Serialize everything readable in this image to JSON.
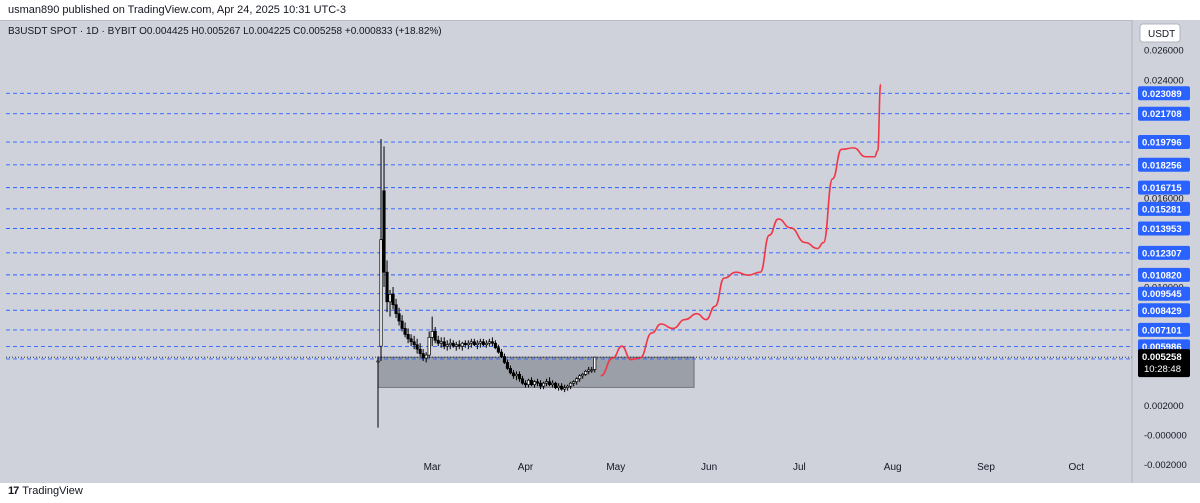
{
  "header": {
    "published": "usman890 published on TradingView.com, Apr 24, 2025 10:31 UTC-3"
  },
  "legend": {
    "text": "B3USDT SPOT · 1D · BYBIT  O0.004425  H0.005267  L0.004225  C0.005258  +0.000833 (+18.82%)"
  },
  "footer": {
    "brand": "TradingView",
    "logo_icon": "tradingview-logo-icon"
  },
  "colors": {
    "background": "#cfd1db",
    "level_line": "#2962ff",
    "projection": "#f23645",
    "candle": "#000000",
    "zone_fill": "#8a8d96",
    "label_bg": "#2962ff"
  },
  "chart_data": {
    "type": "candlestick",
    "currency_label": "USDT",
    "ylim": [
      -0.0025,
      0.0275
    ],
    "y_ticks": [
      "0.026000",
      "0.024000",
      "0.016000",
      "0.010000",
      "0.002000",
      "-0.000000",
      "-0.002000"
    ],
    "x_ticks": [
      "Mar",
      "Apr",
      "May",
      "Jun",
      "Jul",
      "Aug",
      "Sep",
      "Oct"
    ],
    "levels": [
      "0.023089",
      "0.021708",
      "0.019796",
      "0.018256",
      "0.016715",
      "0.015281",
      "0.013953",
      "0.012307",
      "0.010820",
      "0.009545",
      "0.008429",
      "0.007101",
      "0.005986",
      "0.005136"
    ],
    "current_price": {
      "value": "0.005258",
      "countdown": "10:28:48"
    },
    "zone": {
      "top": 0.00526,
      "bottom": 0.00322,
      "start": "2025-02-11",
      "end": "2025-05-27"
    },
    "candles": [
      {
        "d": "2025-02-11",
        "o": 0.005,
        "h": 0.0053,
        "l": 0.0005,
        "c": 0.005
      },
      {
        "d": "2025-02-12",
        "o": 0.006,
        "h": 0.02,
        "l": 0.005,
        "c": 0.0132
      },
      {
        "d": "2025-02-13",
        "o": 0.0165,
        "h": 0.0195,
        "l": 0.01,
        "c": 0.011
      },
      {
        "d": "2025-02-14",
        "o": 0.011,
        "h": 0.0118,
        "l": 0.0083,
        "c": 0.009
      },
      {
        "d": "2025-02-15",
        "o": 0.009,
        "h": 0.0098,
        "l": 0.008,
        "c": 0.0095
      },
      {
        "d": "2025-02-16",
        "o": 0.0095,
        "h": 0.01,
        "l": 0.0085,
        "c": 0.0088
      },
      {
        "d": "2025-02-17",
        "o": 0.0088,
        "h": 0.0092,
        "l": 0.0079,
        "c": 0.0082
      },
      {
        "d": "2025-02-18",
        "o": 0.0082,
        "h": 0.0086,
        "l": 0.0074,
        "c": 0.0077
      },
      {
        "d": "2025-02-19",
        "o": 0.0077,
        "h": 0.0081,
        "l": 0.007,
        "c": 0.0072
      },
      {
        "d": "2025-02-20",
        "o": 0.0072,
        "h": 0.0076,
        "l": 0.0066,
        "c": 0.0068
      },
      {
        "d": "2025-02-21",
        "o": 0.0068,
        "h": 0.0072,
        "l": 0.0062,
        "c": 0.0065
      },
      {
        "d": "2025-02-22",
        "o": 0.0065,
        "h": 0.0068,
        "l": 0.006,
        "c": 0.0063
      },
      {
        "d": "2025-02-23",
        "o": 0.0063,
        "h": 0.0067,
        "l": 0.0058,
        "c": 0.0061
      },
      {
        "d": "2025-02-24",
        "o": 0.0061,
        "h": 0.0065,
        "l": 0.0055,
        "c": 0.0058
      },
      {
        "d": "2025-02-25",
        "o": 0.0058,
        "h": 0.0062,
        "l": 0.0053,
        "c": 0.0055
      },
      {
        "d": "2025-02-26",
        "o": 0.0055,
        "h": 0.0058,
        "l": 0.005,
        "c": 0.0052
      },
      {
        "d": "2025-02-27",
        "o": 0.0052,
        "h": 0.0056,
        "l": 0.0049,
        "c": 0.0054
      },
      {
        "d": "2025-02-28",
        "o": 0.0054,
        "h": 0.007,
        "l": 0.0052,
        "c": 0.0066
      },
      {
        "d": "2025-03-01",
        "o": 0.0066,
        "h": 0.008,
        "l": 0.006,
        "c": 0.007
      },
      {
        "d": "2025-03-02",
        "o": 0.007,
        "h": 0.0073,
        "l": 0.0062,
        "c": 0.0064
      },
      {
        "d": "2025-03-03",
        "o": 0.0064,
        "h": 0.0067,
        "l": 0.006,
        "c": 0.0062
      },
      {
        "d": "2025-03-04",
        "o": 0.0062,
        "h": 0.0066,
        "l": 0.0059,
        "c": 0.0063
      },
      {
        "d": "2025-03-05",
        "o": 0.0063,
        "h": 0.0066,
        "l": 0.0058,
        "c": 0.006
      },
      {
        "d": "2025-03-06",
        "o": 0.006,
        "h": 0.0064,
        "l": 0.0057,
        "c": 0.0061
      },
      {
        "d": "2025-03-07",
        "o": 0.0061,
        "h": 0.0065,
        "l": 0.0058,
        "c": 0.0062
      },
      {
        "d": "2025-03-08",
        "o": 0.0062,
        "h": 0.0064,
        "l": 0.0059,
        "c": 0.006
      },
      {
        "d": "2025-03-09",
        "o": 0.006,
        "h": 0.0063,
        "l": 0.0057,
        "c": 0.0061
      },
      {
        "d": "2025-03-10",
        "o": 0.0061,
        "h": 0.0064,
        "l": 0.0058,
        "c": 0.006
      },
      {
        "d": "2025-03-11",
        "o": 0.006,
        "h": 0.0063,
        "l": 0.0057,
        "c": 0.0062
      },
      {
        "d": "2025-03-12",
        "o": 0.0062,
        "h": 0.0064,
        "l": 0.0059,
        "c": 0.0061
      },
      {
        "d": "2025-03-13",
        "o": 0.0061,
        "h": 0.0064,
        "l": 0.0058,
        "c": 0.0062
      },
      {
        "d": "2025-03-14",
        "o": 0.0062,
        "h": 0.0065,
        "l": 0.0059,
        "c": 0.0063
      },
      {
        "d": "2025-03-15",
        "o": 0.0063,
        "h": 0.0065,
        "l": 0.006,
        "c": 0.0061
      },
      {
        "d": "2025-03-16",
        "o": 0.0061,
        "h": 0.0064,
        "l": 0.0058,
        "c": 0.0062
      },
      {
        "d": "2025-03-17",
        "o": 0.0062,
        "h": 0.0065,
        "l": 0.0059,
        "c": 0.0063
      },
      {
        "d": "2025-03-18",
        "o": 0.0063,
        "h": 0.0065,
        "l": 0.006,
        "c": 0.0061
      },
      {
        "d": "2025-03-19",
        "o": 0.0061,
        "h": 0.0064,
        "l": 0.0059,
        "c": 0.0062
      },
      {
        "d": "2025-03-20",
        "o": 0.0062,
        "h": 0.0065,
        "l": 0.006,
        "c": 0.0063
      },
      {
        "d": "2025-03-21",
        "o": 0.0063,
        "h": 0.0066,
        "l": 0.006,
        "c": 0.0062
      },
      {
        "d": "2025-03-22",
        "o": 0.0062,
        "h": 0.0064,
        "l": 0.0058,
        "c": 0.0059
      },
      {
        "d": "2025-03-23",
        "o": 0.0059,
        "h": 0.0061,
        "l": 0.0055,
        "c": 0.0056
      },
      {
        "d": "2025-03-24",
        "o": 0.0056,
        "h": 0.0058,
        "l": 0.0052,
        "c": 0.0053
      },
      {
        "d": "2025-03-25",
        "o": 0.0053,
        "h": 0.0055,
        "l": 0.0048,
        "c": 0.0049
      },
      {
        "d": "2025-03-26",
        "o": 0.0049,
        "h": 0.0051,
        "l": 0.0044,
        "c": 0.0045
      },
      {
        "d": "2025-03-27",
        "o": 0.0045,
        "h": 0.0047,
        "l": 0.0041,
        "c": 0.0042
      },
      {
        "d": "2025-03-28",
        "o": 0.0042,
        "h": 0.0044,
        "l": 0.0038,
        "c": 0.004
      },
      {
        "d": "2025-03-29",
        "o": 0.004,
        "h": 0.0043,
        "l": 0.0037,
        "c": 0.0041
      },
      {
        "d": "2025-03-30",
        "o": 0.0041,
        "h": 0.0043,
        "l": 0.0036,
        "c": 0.0038
      },
      {
        "d": "2025-03-31",
        "o": 0.0038,
        "h": 0.004,
        "l": 0.0034,
        "c": 0.0035
      },
      {
        "d": "2025-04-01",
        "o": 0.0035,
        "h": 0.0037,
        "l": 0.0032,
        "c": 0.0034
      },
      {
        "d": "2025-04-02",
        "o": 0.0034,
        "h": 0.0038,
        "l": 0.0032,
        "c": 0.0037
      },
      {
        "d": "2025-04-03",
        "o": 0.0037,
        "h": 0.0039,
        "l": 0.0033,
        "c": 0.0034
      },
      {
        "d": "2025-04-04",
        "o": 0.0034,
        "h": 0.0037,
        "l": 0.0032,
        "c": 0.0036
      },
      {
        "d": "2025-04-05",
        "o": 0.0036,
        "h": 0.0038,
        "l": 0.0033,
        "c": 0.0035
      },
      {
        "d": "2025-04-06",
        "o": 0.0035,
        "h": 0.0037,
        "l": 0.0031,
        "c": 0.0033
      },
      {
        "d": "2025-04-07",
        "o": 0.0033,
        "h": 0.0036,
        "l": 0.0031,
        "c": 0.0035
      },
      {
        "d": "2025-04-08",
        "o": 0.0035,
        "h": 0.0038,
        "l": 0.0033,
        "c": 0.0036
      },
      {
        "d": "2025-04-09",
        "o": 0.0036,
        "h": 0.0039,
        "l": 0.0033,
        "c": 0.0034
      },
      {
        "d": "2025-04-10",
        "o": 0.0034,
        "h": 0.0037,
        "l": 0.0032,
        "c": 0.0035
      },
      {
        "d": "2025-04-11",
        "o": 0.0035,
        "h": 0.0036,
        "l": 0.0031,
        "c": 0.0032
      },
      {
        "d": "2025-04-12",
        "o": 0.0032,
        "h": 0.0035,
        "l": 0.003,
        "c": 0.0033
      },
      {
        "d": "2025-04-13",
        "o": 0.0033,
        "h": 0.0035,
        "l": 0.003,
        "c": 0.0031
      },
      {
        "d": "2025-04-14",
        "o": 0.0031,
        "h": 0.0034,
        "l": 0.0029,
        "c": 0.0032
      },
      {
        "d": "2025-04-15",
        "o": 0.0032,
        "h": 0.0034,
        "l": 0.003,
        "c": 0.0033
      },
      {
        "d": "2025-04-16",
        "o": 0.0033,
        "h": 0.0036,
        "l": 0.0031,
        "c": 0.0035
      },
      {
        "d": "2025-04-17",
        "o": 0.0035,
        "h": 0.0037,
        "l": 0.0033,
        "c": 0.0036
      },
      {
        "d": "2025-04-18",
        "o": 0.0036,
        "h": 0.0039,
        "l": 0.0034,
        "c": 0.0038
      },
      {
        "d": "2025-04-19",
        "o": 0.0038,
        "h": 0.0041,
        "l": 0.0036,
        "c": 0.004
      },
      {
        "d": "2025-04-20",
        "o": 0.004,
        "h": 0.0042,
        "l": 0.0038,
        "c": 0.0041
      },
      {
        "d": "2025-04-21",
        "o": 0.0041,
        "h": 0.0044,
        "l": 0.004,
        "c": 0.0043
      },
      {
        "d": "2025-04-22",
        "o": 0.0043,
        "h": 0.0046,
        "l": 0.0041,
        "c": 0.0044
      },
      {
        "d": "2025-04-23",
        "o": 0.0044,
        "h": 0.0046,
        "l": 0.0042,
        "c": 0.0044
      },
      {
        "d": "2025-04-24",
        "o": 0.004425,
        "h": 0.005267,
        "l": 0.004225,
        "c": 0.005258
      }
    ],
    "projection": [
      [
        "2025-04-26",
        0.004
      ],
      [
        "2025-04-30",
        0.0052
      ],
      [
        "2025-05-03",
        0.006
      ],
      [
        "2025-05-06",
        0.0051
      ],
      [
        "2025-05-09",
        0.0052
      ],
      [
        "2025-05-13",
        0.0069
      ],
      [
        "2025-05-16",
        0.0075
      ],
      [
        "2025-05-20",
        0.0072
      ],
      [
        "2025-05-24",
        0.0078
      ],
      [
        "2025-05-28",
        0.0082
      ],
      [
        "2025-05-31",
        0.0078
      ],
      [
        "2025-06-03",
        0.0087
      ],
      [
        "2025-06-06",
        0.0106
      ],
      [
        "2025-06-10",
        0.011
      ],
      [
        "2025-06-14",
        0.0108
      ],
      [
        "2025-06-18",
        0.011
      ],
      [
        "2025-06-21",
        0.0135
      ],
      [
        "2025-06-24",
        0.0146
      ],
      [
        "2025-06-28",
        0.014
      ],
      [
        "2025-07-03",
        0.013
      ],
      [
        "2025-07-07",
        0.0126
      ],
      [
        "2025-07-09",
        0.013
      ],
      [
        "2025-07-12",
        0.0173
      ],
      [
        "2025-07-15",
        0.0193
      ],
      [
        "2025-07-19",
        0.0194
      ],
      [
        "2025-07-23",
        0.0188
      ],
      [
        "2025-07-26",
        0.0188
      ],
      [
        "2025-07-27",
        0.0192
      ],
      [
        "2025-07-28",
        0.0237
      ]
    ]
  }
}
